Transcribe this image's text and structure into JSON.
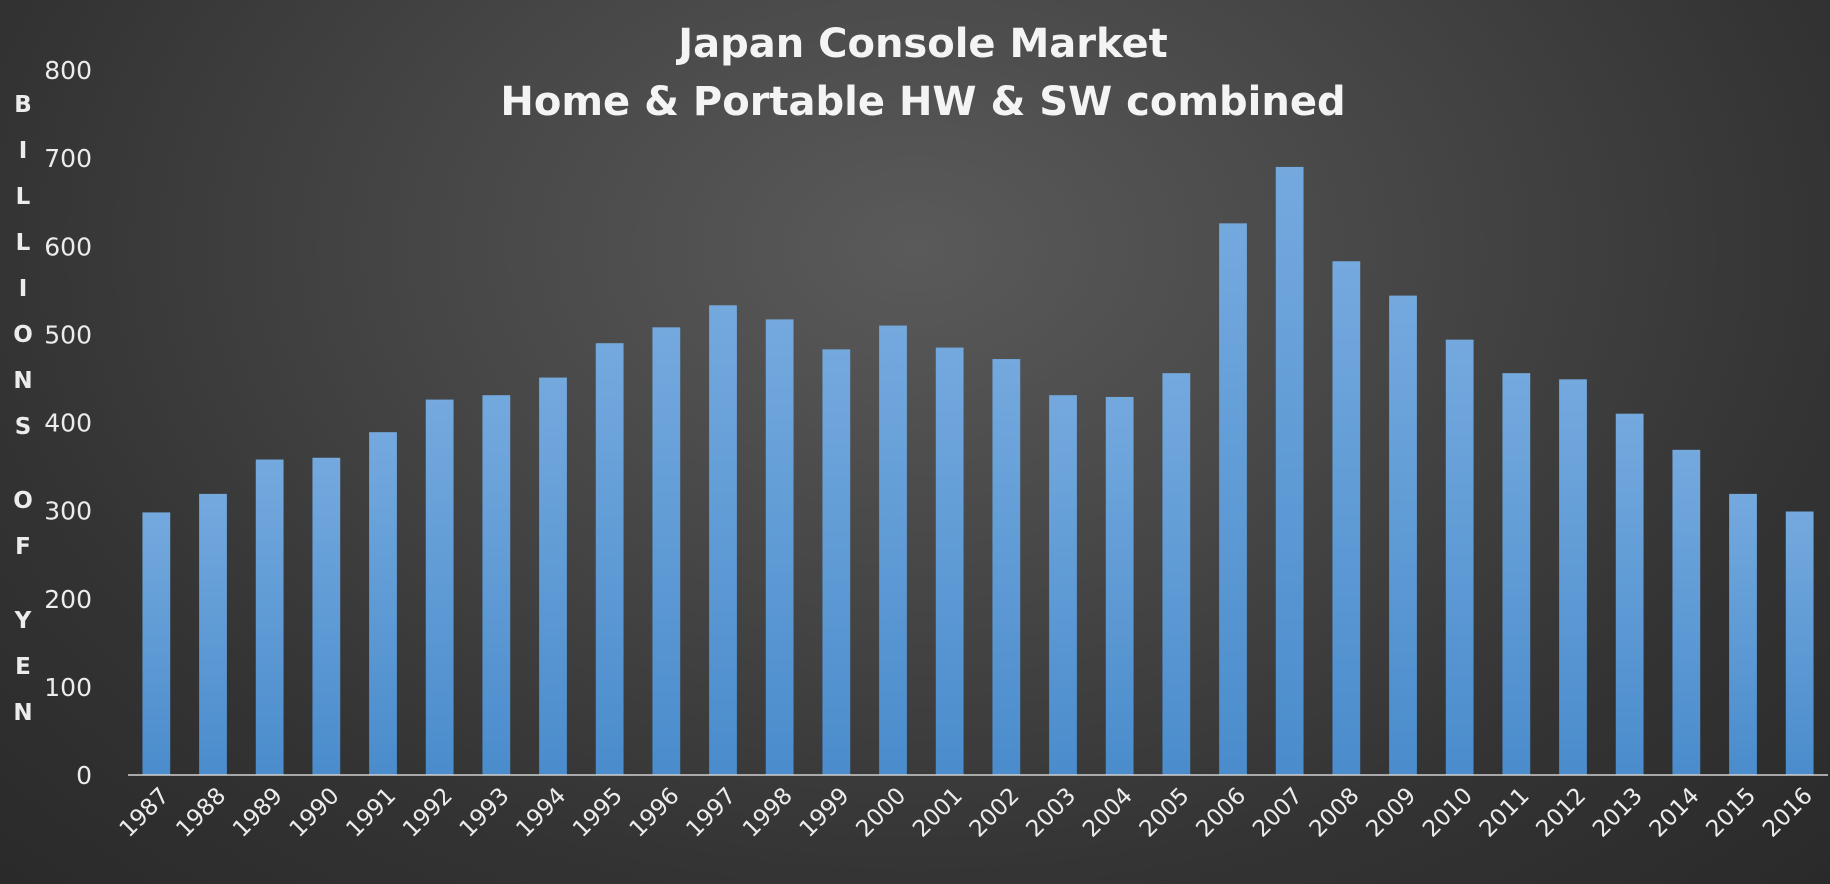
{
  "chart_data": {
    "type": "bar",
    "title": "Japan Console Market",
    "subtitle": "Home & Portable HW & SW combined",
    "xlabel": "",
    "ylabel": "BILLIONS OF YEN",
    "ylabel_lines": [
      "BILLIONS",
      "OF",
      "YEN"
    ],
    "ylim": [
      0,
      800
    ],
    "yticks": [
      0,
      100,
      200,
      300,
      400,
      500,
      600,
      700,
      800
    ],
    "grid": false,
    "legend": "none",
    "bar_color": "#5b9bd5",
    "categories": [
      "1987",
      "1988",
      "1989",
      "1990",
      "1991",
      "1992",
      "1993",
      "1994",
      "1995",
      "1996",
      "1997",
      "1998",
      "1999",
      "2000",
      "2001",
      "2002",
      "2003",
      "2004",
      "2005",
      "2006",
      "2007",
      "2008",
      "2009",
      "2010",
      "2011",
      "2012",
      "2013",
      "2014",
      "2015",
      "2016"
    ],
    "values": [
      298,
      319,
      358,
      360,
      389,
      426,
      431,
      451,
      490,
      508,
      533,
      517,
      483,
      510,
      485,
      472,
      431,
      429,
      456,
      626,
      690,
      583,
      544,
      494,
      456,
      449,
      410,
      369,
      319,
      299
    ]
  }
}
